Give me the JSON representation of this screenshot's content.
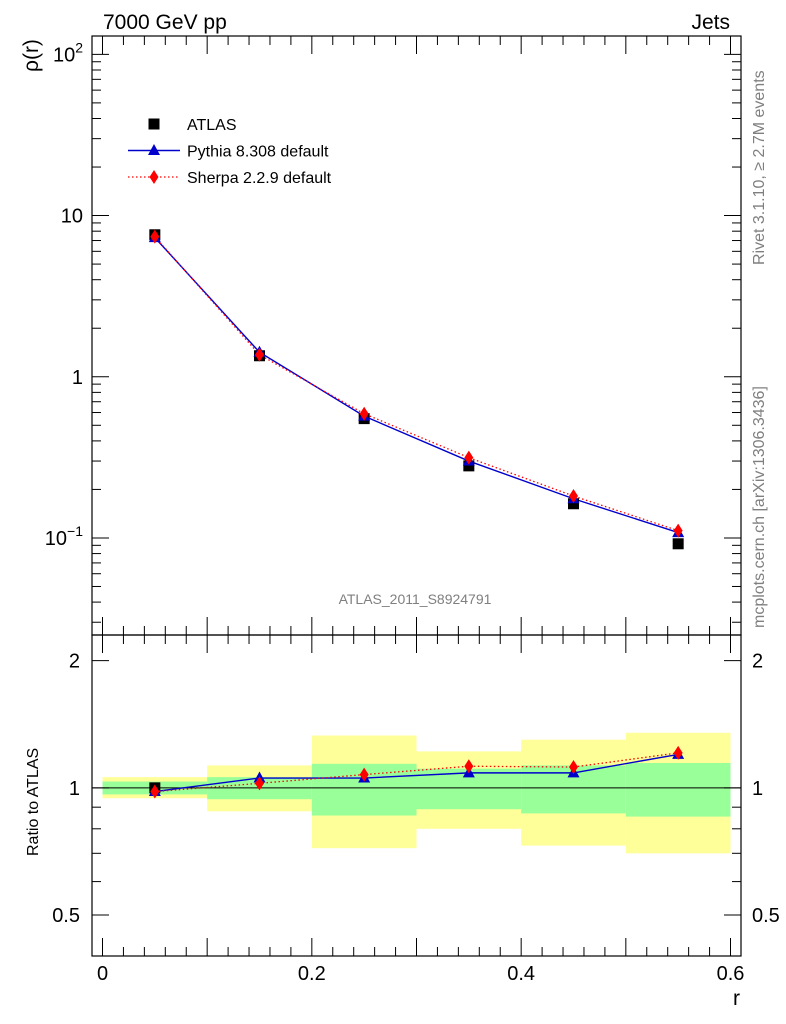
{
  "header": {
    "left": "7000 GeV pp",
    "right": "Jets"
  },
  "side_text": {
    "rivet": "Rivet 3.1.10, ≥ 2.7M events",
    "source": "mcplots.cern.ch [arXiv:1306.3436]"
  },
  "watermark": "ATLAS_2011_S8924791",
  "colors": {
    "data": "#000000",
    "pythia": "#0000cc",
    "sherpa": "#ff0000",
    "band_inner": "#99ff99",
    "band_outer": "#ffff99"
  },
  "chart_data": [
    {
      "type": "scatter",
      "panel": "main",
      "ylabel": "ρ(r)",
      "yscale": "log",
      "xlim": [
        0,
        0.6
      ],
      "ylim": [
        0.025,
        130
      ],
      "y_ticks": [
        {
          "label_base": "10",
          "label_exp": "−1",
          "value": 0.1
        },
        {
          "label_base": "1",
          "label_exp": "",
          "value": 1
        },
        {
          "label_base": "10",
          "label_exp": "",
          "value": 10
        },
        {
          "label_base": "10",
          "label_exp": "2",
          "value": 100
        }
      ],
      "legend": [
        {
          "label": "ATLAS",
          "marker": "square"
        },
        {
          "label": "Pythia 8.308 default",
          "marker": "triangle"
        },
        {
          "label": "Sherpa 2.2.9 default",
          "marker": "diamond"
        }
      ],
      "legend_position": "top-left",
      "x": [
        0.05,
        0.15,
        0.25,
        0.35,
        0.45,
        0.55
      ],
      "series": [
        {
          "name": "ATLAS",
          "values": [
            7.6,
            1.35,
            0.55,
            0.28,
            0.163,
            0.092
          ]
        },
        {
          "name": "Pythia 8.308 default",
          "values": [
            7.3,
            1.42,
            0.57,
            0.3,
            0.175,
            0.108
          ]
        },
        {
          "name": "Sherpa 2.2.9 default",
          "values": [
            7.4,
            1.37,
            0.59,
            0.315,
            0.182,
            0.111
          ]
        }
      ]
    },
    {
      "type": "line",
      "panel": "ratio",
      "xlabel": "r",
      "ylabel": "Ratio to ATLAS",
      "xlim": [
        0,
        0.6
      ],
      "ylim": [
        0.4,
        2.3
      ],
      "x_ticks": [
        {
          "label": "0",
          "value": 0
        },
        {
          "label": "0.2",
          "value": 0.2
        },
        {
          "label": "0.4",
          "value": 0.4
        },
        {
          "label": "0.6",
          "value": 0.6
        }
      ],
      "y_ticks": [
        {
          "label": "0.5",
          "value": 0.5
        },
        {
          "label": "1",
          "value": 1
        },
        {
          "label": "2",
          "value": 2
        }
      ],
      "bins": [
        {
          "lo": 0.0,
          "hi": 0.1,
          "inner": [
            0.965,
            1.035
          ],
          "outer": [
            0.945,
            1.06
          ]
        },
        {
          "lo": 0.1,
          "hi": 0.2,
          "inner": [
            0.94,
            1.06
          ],
          "outer": [
            0.88,
            1.13
          ]
        },
        {
          "lo": 0.2,
          "hi": 0.3,
          "inner": [
            0.86,
            1.14
          ],
          "outer": [
            0.72,
            1.33
          ]
        },
        {
          "lo": 0.3,
          "hi": 0.4,
          "inner": [
            0.89,
            1.11
          ],
          "outer": [
            0.8,
            1.22
          ]
        },
        {
          "lo": 0.4,
          "hi": 0.5,
          "inner": [
            0.87,
            1.13
          ],
          "outer": [
            0.73,
            1.3
          ]
        },
        {
          "lo": 0.5,
          "hi": 0.6,
          "inner": [
            0.855,
            1.145
          ],
          "outer": [
            0.7,
            1.35
          ]
        }
      ],
      "x": [
        0.05,
        0.15,
        0.25,
        0.35,
        0.45,
        0.55
      ],
      "series": [
        {
          "name": "Pythia 8.308 default",
          "values": [
            0.98,
            1.055,
            1.055,
            1.085,
            1.085,
            1.2
          ]
        },
        {
          "name": "Sherpa 2.2.9 default",
          "values": [
            0.98,
            1.025,
            1.075,
            1.125,
            1.12,
            1.21
          ]
        }
      ]
    }
  ]
}
